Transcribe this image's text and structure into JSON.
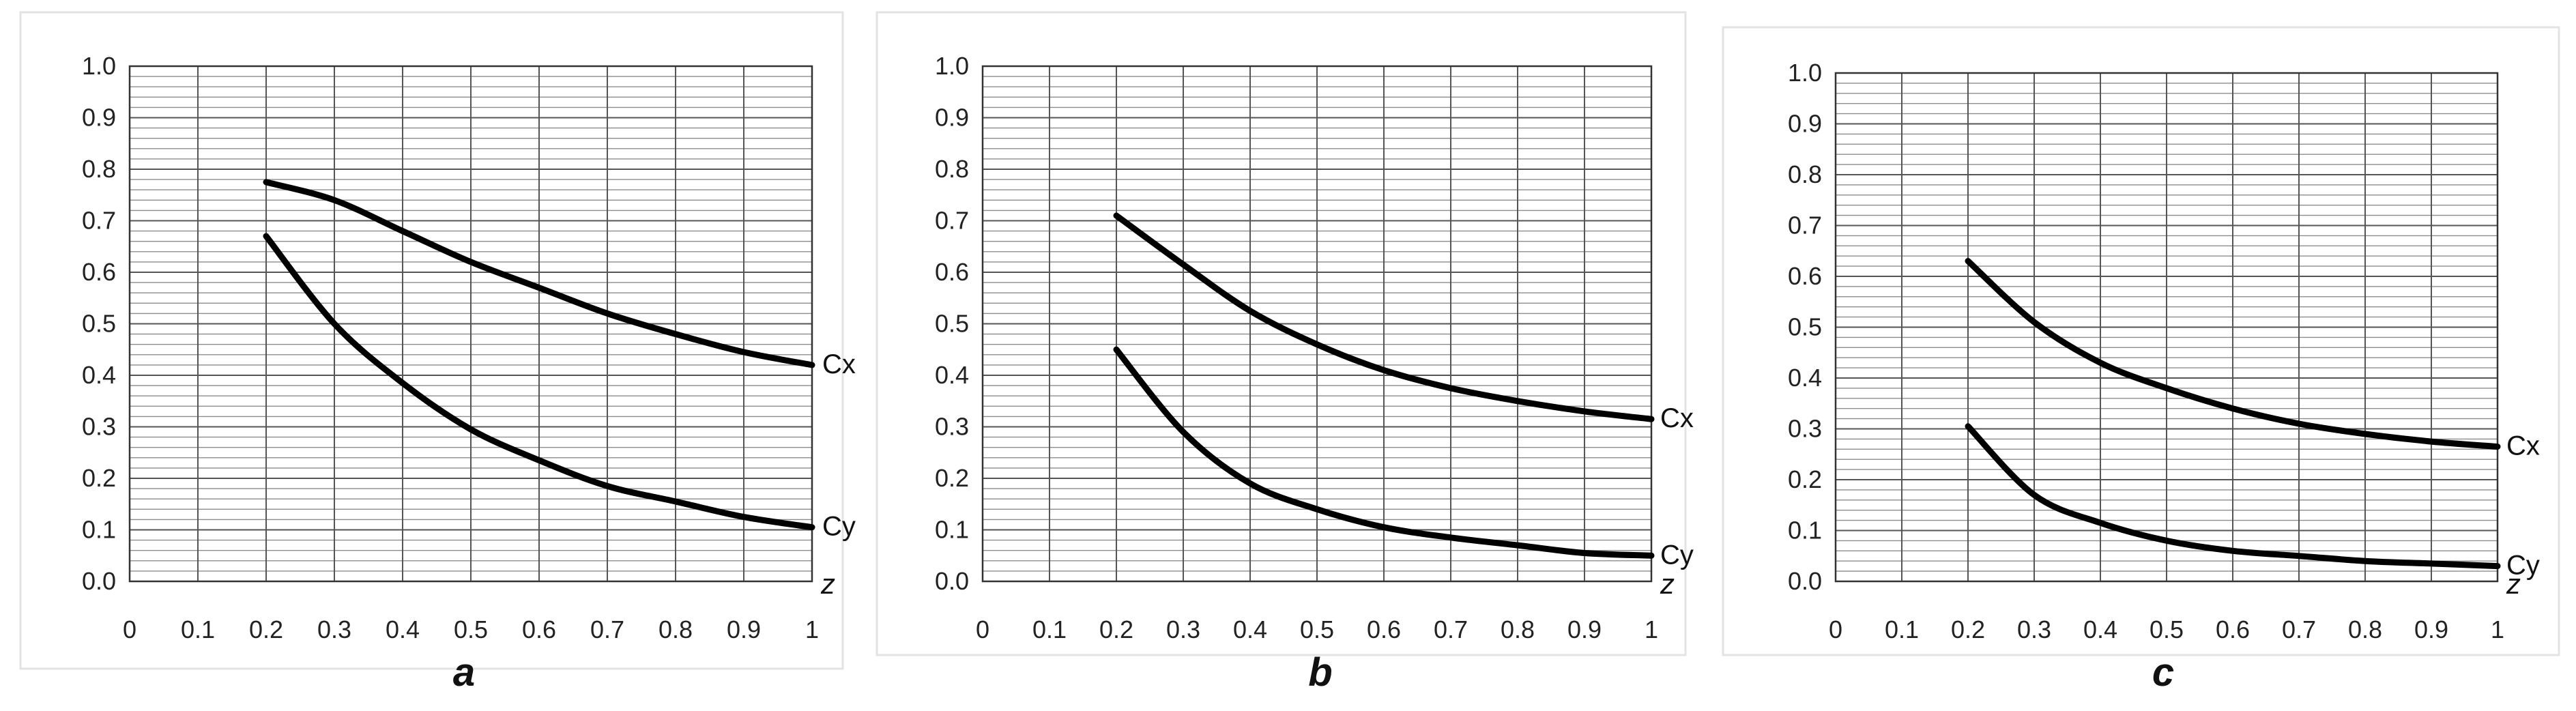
{
  "chart_data": [
    {
      "type": "line",
      "panel_label": "a",
      "x_axis_variable": "z",
      "xlim": [
        0,
        1
      ],
      "ylim": [
        0,
        1
      ],
      "x_ticks": [
        "0",
        "0.1",
        "0.2",
        "0.3",
        "0.4",
        "0.5",
        "0.6",
        "0.7",
        "0.8",
        "0.9",
        "1"
      ],
      "y_ticks": [
        "0.0",
        "0.1",
        "0.2",
        "0.3",
        "0.4",
        "0.5",
        "0.6",
        "0.7",
        "0.8",
        "0.9",
        "1.0"
      ],
      "grid": true,
      "series": [
        {
          "name": "Cx",
          "x": [
            0.2,
            0.3,
            0.4,
            0.5,
            0.6,
            0.7,
            0.8,
            0.9,
            1.0
          ],
          "y": [
            0.775,
            0.74,
            0.68,
            0.62,
            0.57,
            0.52,
            0.48,
            0.445,
            0.42
          ]
        },
        {
          "name": "Cy",
          "x": [
            0.2,
            0.3,
            0.4,
            0.5,
            0.6,
            0.7,
            0.8,
            0.9,
            1.0
          ],
          "y": [
            0.67,
            0.5,
            0.385,
            0.295,
            0.235,
            0.185,
            0.155,
            0.125,
            0.105
          ]
        }
      ]
    },
    {
      "type": "line",
      "panel_label": "b",
      "x_axis_variable": "z",
      "xlim": [
        0,
        1
      ],
      "ylim": [
        0,
        1
      ],
      "x_ticks": [
        "0",
        "0.1",
        "0.2",
        "0.3",
        "0.4",
        "0.5",
        "0.6",
        "0.7",
        "0.8",
        "0.9",
        "1"
      ],
      "y_ticks": [
        "0.0",
        "0.1",
        "0.2",
        "0.3",
        "0.4",
        "0.5",
        "0.6",
        "0.7",
        "0.8",
        "0.9",
        "1.0"
      ],
      "grid": true,
      "series": [
        {
          "name": "Cx",
          "x": [
            0.2,
            0.3,
            0.4,
            0.5,
            0.6,
            0.7,
            0.8,
            0.9,
            1.0
          ],
          "y": [
            0.71,
            0.615,
            0.525,
            0.46,
            0.41,
            0.375,
            0.35,
            0.33,
            0.315
          ]
        },
        {
          "name": "Cy",
          "x": [
            0.2,
            0.3,
            0.4,
            0.5,
            0.6,
            0.7,
            0.8,
            0.9,
            1.0
          ],
          "y": [
            0.45,
            0.29,
            0.19,
            0.14,
            0.105,
            0.085,
            0.07,
            0.055,
            0.05
          ]
        }
      ]
    },
    {
      "type": "line",
      "panel_label": "c",
      "x_axis_variable": "z",
      "xlim": [
        0,
        1
      ],
      "ylim": [
        0,
        1
      ],
      "x_ticks": [
        "0",
        "0.1",
        "0.2",
        "0.3",
        "0.4",
        "0.5",
        "0.6",
        "0.7",
        "0.8",
        "0.9",
        "1"
      ],
      "y_ticks": [
        "0.0",
        "0.1",
        "0.2",
        "0.3",
        "0.4",
        "0.5",
        "0.6",
        "0.7",
        "0.8",
        "0.9",
        "1.0"
      ],
      "grid": true,
      "series": [
        {
          "name": "Cx",
          "x": [
            0.2,
            0.3,
            0.4,
            0.5,
            0.6,
            0.7,
            0.8,
            0.9,
            1.0
          ],
          "y": [
            0.63,
            0.51,
            0.43,
            0.38,
            0.34,
            0.31,
            0.29,
            0.275,
            0.265
          ]
        },
        {
          "name": "Cy",
          "x": [
            0.2,
            0.3,
            0.4,
            0.5,
            0.6,
            0.7,
            0.8,
            0.9,
            1.0
          ],
          "y": [
            0.305,
            0.17,
            0.115,
            0.08,
            0.06,
            0.05,
            0.04,
            0.035,
            0.03
          ]
        }
      ]
    }
  ]
}
